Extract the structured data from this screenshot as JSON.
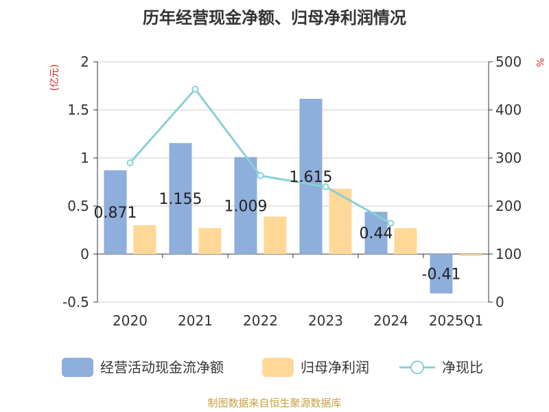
{
  "chart_data": {
    "type": "bar",
    "title": "历年经营现金净额、归母净利润情况",
    "categories": [
      "2020",
      "2021",
      "2022",
      "2023",
      "2024",
      "2025Q1"
    ],
    "series": [
      {
        "name": "经营活动现金流净额",
        "kind": "bar",
        "axis": "left",
        "color": "#8eaedb",
        "values": [
          0.871,
          1.155,
          1.009,
          1.615,
          0.44,
          -0.41
        ],
        "data_labels": [
          "0.871",
          "1.155",
          "1.009",
          "1.615",
          "0.44",
          "-0.41"
        ]
      },
      {
        "name": "归母净利润",
        "kind": "bar",
        "axis": "left",
        "color": "#ffd898",
        "values": [
          0.3,
          0.27,
          0.39,
          0.68,
          0.27,
          -0.02
        ]
      },
      {
        "name": "净现比",
        "kind": "line",
        "axis": "right",
        "color": "#88d0d6",
        "values": [
          290,
          443,
          263,
          240,
          164,
          null
        ]
      }
    ],
    "y_left": {
      "unit": "(亿元)",
      "ylim": [
        -0.5,
        2
      ],
      "ticks": [
        "2",
        "1.5",
        "1",
        "0.5",
        "0",
        "-0.5"
      ],
      "tick_values": [
        2,
        1.5,
        1,
        0.5,
        0,
        -0.5
      ]
    },
    "y_right": {
      "unit": "%",
      "ylim": [
        0,
        500
      ],
      "ticks": [
        "500",
        "400",
        "300",
        "200",
        "100",
        "0"
      ],
      "tick_values": [
        500,
        400,
        300,
        200,
        100,
        0
      ]
    },
    "grid": true,
    "legend_position": "bottom"
  },
  "source": "制图数据来自恒生聚源数据库"
}
